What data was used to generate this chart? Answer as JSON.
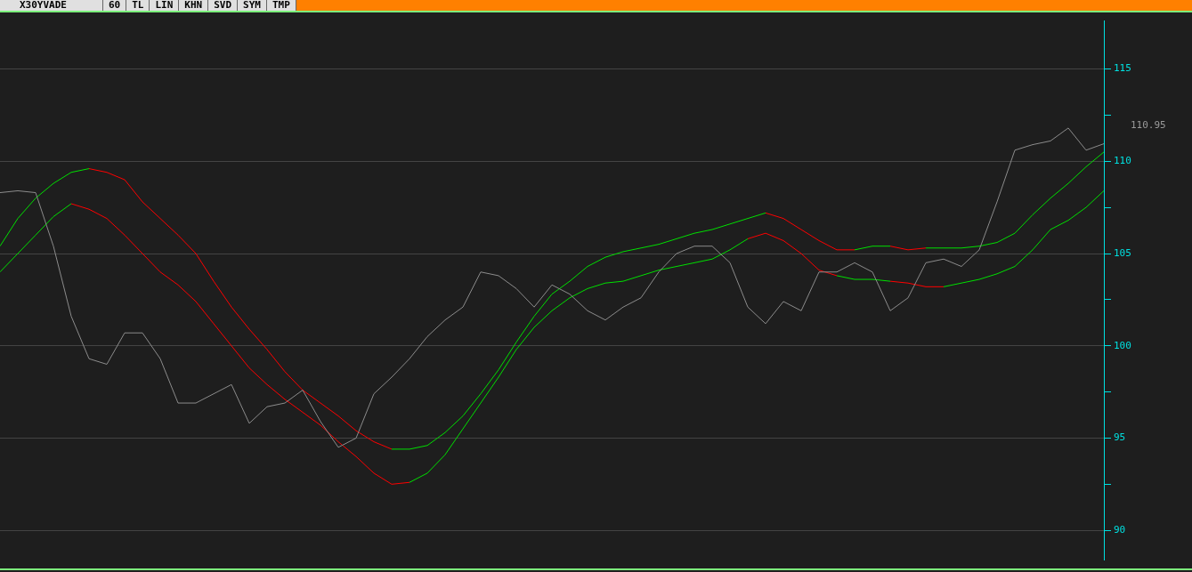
{
  "chart_data": {
    "type": "line",
    "title": "X30YVADE",
    "annotations": [
      "60",
      "TL",
      "LIN",
      "KHN",
      "SVD",
      "SYM",
      "TMP",
      "110.95"
    ],
    "categories": [
      null,
      null,
      null,
      null,
      null,
      null,
      null,
      null,
      null,
      null,
      null,
      null,
      null,
      null,
      null,
      null,
      null,
      null,
      null,
      null,
      null,
      null,
      null,
      null,
      null,
      null,
      null,
      null,
      null,
      null,
      null,
      null,
      null,
      null,
      null,
      null,
      null,
      null,
      null,
      null,
      null,
      null,
      null,
      null,
      null,
      null,
      null,
      null,
      null,
      null,
      null,
      null,
      null,
      null,
      null,
      null,
      null,
      null,
      null,
      null,
      null,
      null,
      null
    ],
    "series": [
      {
        "color": "#8c8c8c",
        "values": [
          108.3,
          108.4,
          108.3,
          105.4,
          101.6,
          99.3,
          99.0,
          100.7,
          100.7,
          99.3,
          96.9,
          96.9,
          97.4,
          97.9,
          95.8,
          96.7,
          96.9,
          97.6,
          95.9,
          94.5,
          95.0,
          97.4,
          98.3,
          99.3,
          100.5,
          101.4,
          102.1,
          104.0,
          103.8,
          103.1,
          102.1,
          103.3,
          102.8,
          101.9,
          101.4,
          102.1,
          102.6,
          104.0,
          105.0,
          105.4,
          105.4,
          104.5,
          102.1,
          101.2,
          102.4,
          101.9,
          104.0,
          104.0,
          104.5,
          104.0,
          101.9,
          102.6,
          104.5,
          104.7,
          104.3,
          105.2,
          107.8,
          110.6,
          110.9,
          111.1,
          111.8,
          110.6,
          110.95
        ]
      },
      {
        "color": "#00e000",
        "values": [
          105.4,
          106.9,
          108.0,
          108.8,
          109.4,
          109.6,
          null,
          null,
          null,
          null,
          null,
          null,
          null,
          null,
          null,
          null,
          null,
          null,
          null,
          null,
          null,
          null,
          94.4,
          94.4,
          94.6,
          95.3,
          96.2,
          97.4,
          98.7,
          100.2,
          101.6,
          102.8,
          103.5,
          104.3,
          104.8,
          105.1,
          105.3,
          105.5,
          105.8,
          106.1,
          106.3,
          106.6,
          106.9,
          107.2,
          null,
          null,
          null,
          null,
          105.2,
          105.4,
          105.4,
          null,
          105.3,
          105.3,
          105.3,
          105.4,
          105.6,
          106.1,
          107.1,
          108.0,
          108.8,
          109.7,
          110.5
        ]
      },
      {
        "color": "#ff0000",
        "values": [
          null,
          null,
          null,
          null,
          null,
          109.6,
          109.4,
          109.0,
          107.8,
          106.9,
          106.0,
          105.0,
          103.5,
          102.1,
          100.9,
          99.8,
          98.6,
          97.6,
          96.9,
          96.2,
          95.4,
          94.8,
          94.4,
          null,
          null,
          null,
          null,
          null,
          null,
          null,
          null,
          null,
          null,
          null,
          null,
          null,
          null,
          null,
          null,
          null,
          null,
          null,
          null,
          107.2,
          106.9,
          106.3,
          105.7,
          105.2,
          105.2,
          null,
          105.4,
          105.2,
          105.3,
          null,
          null,
          null,
          null,
          null,
          null,
          null,
          null,
          null,
          null
        ]
      },
      {
        "color": "#00e000",
        "values": [
          104.0,
          105.0,
          106.0,
          107.0,
          107.7,
          null,
          null,
          null,
          null,
          null,
          null,
          null,
          null,
          null,
          null,
          null,
          null,
          null,
          null,
          null,
          null,
          null,
          null,
          92.6,
          93.1,
          94.1,
          95.5,
          96.9,
          98.3,
          99.8,
          101.0,
          101.9,
          102.6,
          103.1,
          103.4,
          103.5,
          103.8,
          104.1,
          104.3,
          104.5,
          104.7,
          105.2,
          105.8,
          null,
          null,
          null,
          null,
          103.8,
          103.6,
          103.6,
          103.5,
          null,
          null,
          103.2,
          103.4,
          103.6,
          103.9,
          104.3,
          105.2,
          106.3,
          106.8,
          107.5,
          108.4
        ]
      },
      {
        "color": "#ff0000",
        "values": [
          null,
          null,
          null,
          null,
          107.7,
          107.4,
          106.9,
          106.0,
          105.0,
          104.0,
          103.3,
          102.4,
          101.2,
          100.0,
          98.8,
          97.9,
          97.1,
          96.4,
          95.7,
          94.8,
          94.0,
          93.1,
          92.5,
          92.6,
          null,
          null,
          null,
          null,
          null,
          null,
          null,
          null,
          null,
          null,
          null,
          null,
          null,
          null,
          null,
          null,
          null,
          null,
          105.8,
          106.1,
          105.7,
          105.0,
          104.1,
          103.8,
          null,
          null,
          103.5,
          103.4,
          103.2,
          103.2,
          null,
          null,
          null,
          null,
          null,
          null,
          null,
          null,
          null
        ]
      }
    ],
    "ylim": [
      88.4,
      117.6
    ],
    "yticks": [
      90,
      {
        "value": 92.5,
        "label": null
      },
      95,
      {
        "value": 97.5,
        "label": null
      },
      100,
      {
        "value": 102.5,
        "label": null
      },
      105,
      {
        "value": 107.5,
        "label": null
      },
      110,
      {
        "value": 112.5,
        "label": null
      },
      115
    ],
    "grid": "y",
    "legend": false,
    "marker": "none",
    "line_style": "solid"
  }
}
